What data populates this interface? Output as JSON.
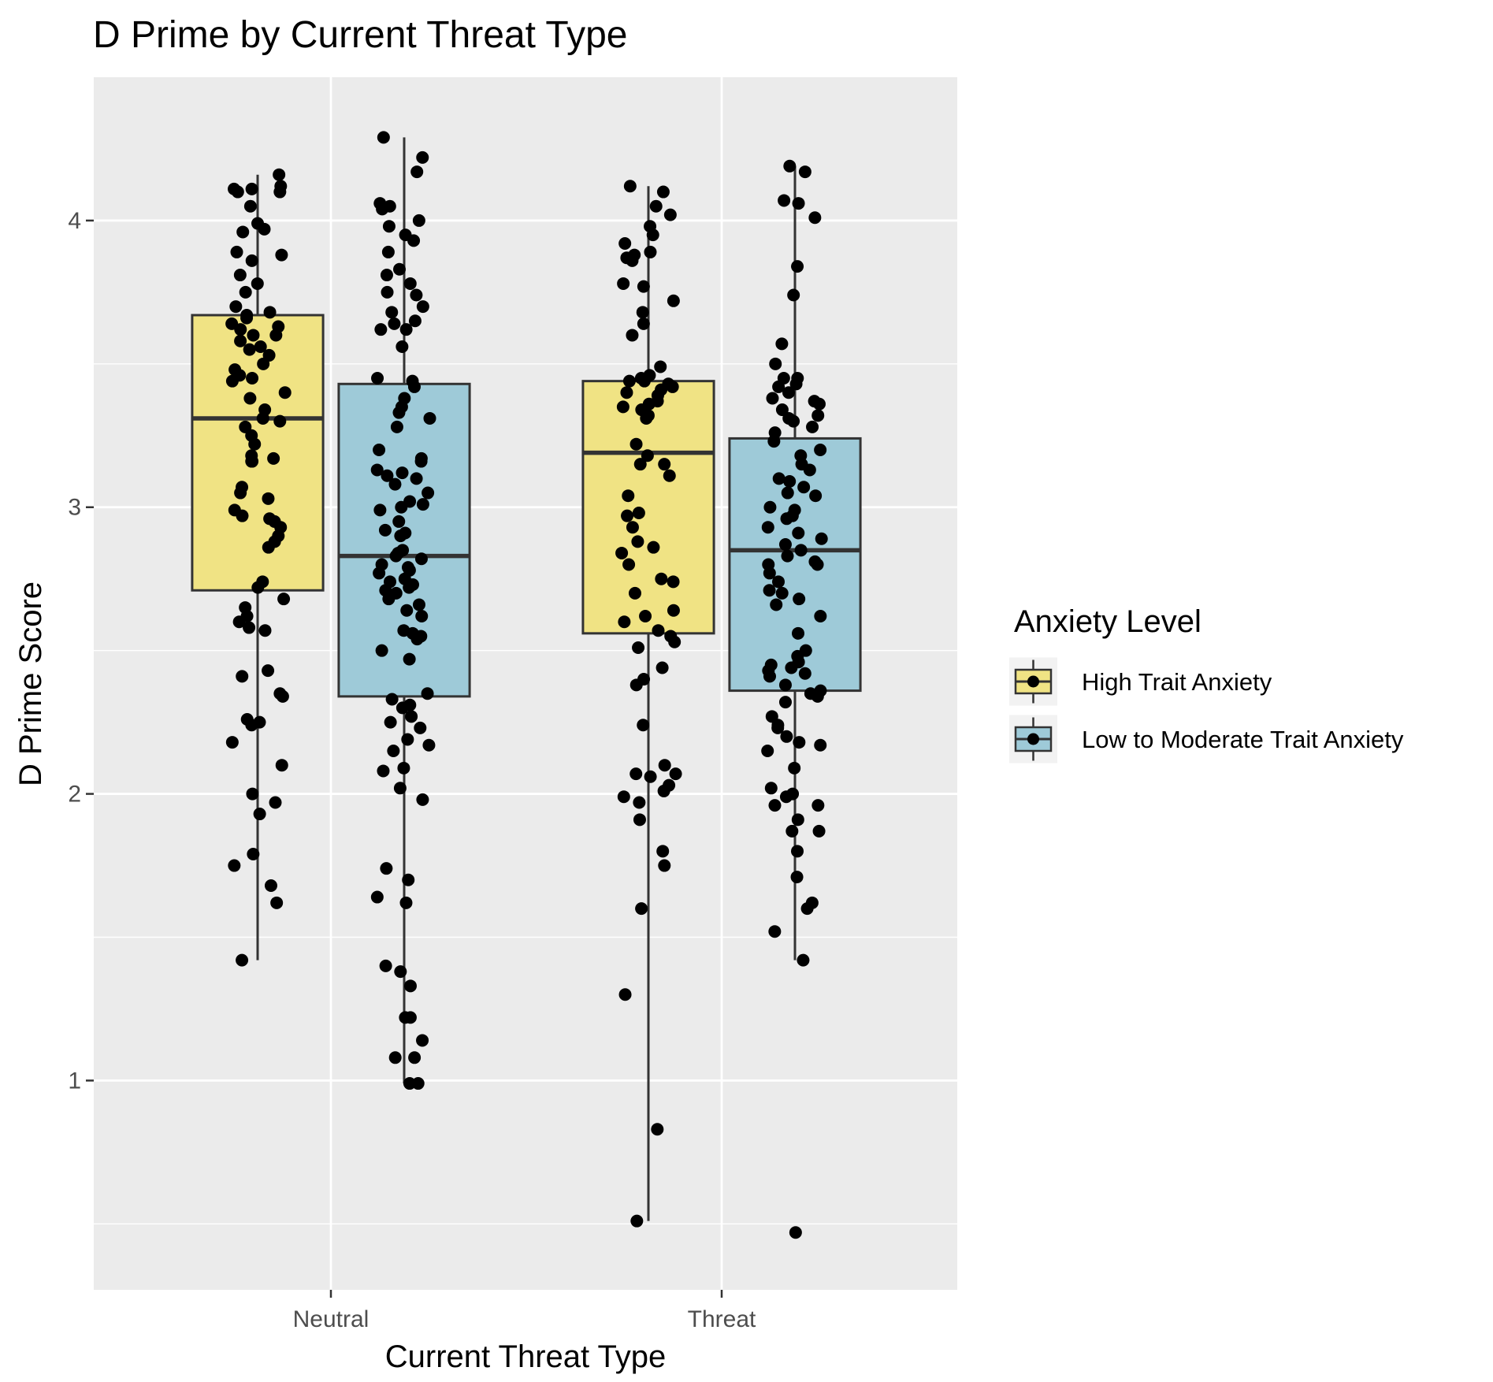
{
  "chart_data": {
    "type": "boxplot",
    "title": "D Prime by Current Threat Type",
    "xlabel": "Current Threat Type",
    "ylabel": "D Prime Score",
    "categories": [
      "Neutral",
      "Threat"
    ],
    "ylim": [
      0.27,
      4.5
    ],
    "yticks": [
      1,
      2,
      3,
      4
    ],
    "grid": true,
    "legend": {
      "title": "Anxiety Level",
      "placement": "right",
      "entries": [
        "High Trait Anxiety",
        "Low to Moderate Trait Anxiety"
      ]
    },
    "series": [
      {
        "name": "High Trait Anxiety",
        "color": "#f0e384",
        "boxes": [
          {
            "category": "Neutral",
            "min": 1.42,
            "q1": 2.71,
            "median": 3.31,
            "q3": 3.67,
            "max": 4.16,
            "points": [
              4.16,
              4.12,
              4.11,
              4.11,
              4.1,
              4.1,
              4.05,
              3.99,
              3.97,
              3.96,
              3.89,
              3.88,
              3.86,
              3.81,
              3.78,
              3.75,
              3.7,
              3.68,
              3.67,
              3.66,
              3.64,
              3.63,
              3.62,
              3.6,
              3.6,
              3.58,
              3.56,
              3.55,
              3.53,
              3.5,
              3.48,
              3.46,
              3.45,
              3.44,
              3.4,
              3.38,
              3.34,
              3.31,
              3.3,
              3.28,
              3.25,
              3.22,
              3.18,
              3.17,
              3.16,
              3.16,
              3.07,
              3.05,
              3.03,
              2.99,
              2.97,
              2.96,
              2.95,
              2.93,
              2.9,
              2.88,
              2.86,
              2.74,
              2.72,
              2.68,
              2.65,
              2.62,
              2.6,
              2.58,
              2.57,
              2.43,
              2.41,
              2.35,
              2.34,
              2.26,
              2.25,
              2.24,
              2.18,
              2.1,
              2.0,
              1.97,
              1.93,
              1.79,
              1.75,
              1.68,
              1.62,
              1.42
            ]
          },
          {
            "category": "Threat",
            "min": 0.51,
            "q1": 2.56,
            "median": 3.19,
            "q3": 3.44,
            "max": 4.12,
            "points": [
              4.12,
              4.1,
              4.05,
              4.02,
              3.98,
              3.95,
              3.92,
              3.89,
              3.88,
              3.87,
              3.86,
              3.78,
              3.77,
              3.72,
              3.68,
              3.64,
              3.6,
              3.49,
              3.46,
              3.45,
              3.44,
              3.44,
              3.43,
              3.42,
              3.41,
              3.4,
              3.39,
              3.37,
              3.36,
              3.35,
              3.34,
              3.32,
              3.31,
              3.22,
              3.18,
              3.15,
              3.15,
              3.11,
              3.04,
              2.98,
              2.97,
              2.93,
              2.88,
              2.86,
              2.84,
              2.8,
              2.75,
              2.74,
              2.7,
              2.64,
              2.62,
              2.6,
              2.57,
              2.55,
              2.53,
              2.51,
              2.44,
              2.4,
              2.38,
              2.24,
              2.1,
              2.07,
              2.07,
              2.06,
              2.03,
              2.01,
              1.99,
              1.97,
              1.91,
              1.8,
              1.75,
              1.6,
              1.3,
              0.83,
              0.51
            ]
          }
        ]
      },
      {
        "name": "Low to Moderate Trait Anxiety",
        "color": "#9ecad8",
        "boxes": [
          {
            "category": "Neutral",
            "min": 0.99,
            "q1": 2.34,
            "median": 2.83,
            "q3": 3.43,
            "max": 4.29,
            "points": [
              4.29,
              4.22,
              4.17,
              4.06,
              4.05,
              4.04,
              4.0,
              3.98,
              3.95,
              3.93,
              3.89,
              3.83,
              3.81,
              3.78,
              3.75,
              3.74,
              3.7,
              3.68,
              3.65,
              3.64,
              3.62,
              3.62,
              3.56,
              3.45,
              3.44,
              3.42,
              3.38,
              3.35,
              3.33,
              3.31,
              3.28,
              3.2,
              3.17,
              3.16,
              3.13,
              3.12,
              3.11,
              3.1,
              3.08,
              3.05,
              3.02,
              3.01,
              3.0,
              2.99,
              2.95,
              2.92,
              2.91,
              2.9,
              2.85,
              2.84,
              2.83,
              2.82,
              2.8,
              2.79,
              2.78,
              2.77,
              2.75,
              2.74,
              2.73,
              2.72,
              2.71,
              2.7,
              2.68,
              2.66,
              2.64,
              2.62,
              2.57,
              2.56,
              2.55,
              2.54,
              2.5,
              2.47,
              2.35,
              2.33,
              2.31,
              2.3,
              2.27,
              2.25,
              2.23,
              2.19,
              2.17,
              2.15,
              2.09,
              2.08,
              2.02,
              1.98,
              1.74,
              1.7,
              1.64,
              1.62,
              1.4,
              1.38,
              1.33,
              1.22,
              1.22,
              1.14,
              1.08,
              1.08,
              0.99,
              0.99
            ]
          },
          {
            "category": "Threat",
            "min": 1.42,
            "q1": 2.36,
            "median": 2.85,
            "q3": 3.24,
            "max": 4.19,
            "points": [
              4.19,
              4.17,
              4.07,
              4.06,
              4.01,
              3.84,
              3.74,
              3.57,
              3.5,
              3.45,
              3.45,
              3.43,
              3.42,
              3.4,
              3.38,
              3.37,
              3.36,
              3.34,
              3.32,
              3.31,
              3.3,
              3.28,
              3.26,
              3.23,
              3.2,
              3.18,
              3.15,
              3.13,
              3.1,
              3.09,
              3.07,
              3.05,
              3.04,
              3.0,
              2.99,
              2.97,
              2.96,
              2.93,
              2.91,
              2.89,
              2.87,
              2.85,
              2.83,
              2.81,
              2.8,
              2.8,
              2.77,
              2.74,
              2.71,
              2.7,
              2.68,
              2.66,
              2.62,
              2.56,
              2.5,
              2.48,
              2.46,
              2.45,
              2.44,
              2.43,
              2.42,
              2.41,
              2.38,
              2.36,
              2.35,
              2.34,
              2.32,
              2.27,
              2.24,
              2.23,
              2.2,
              2.18,
              2.17,
              2.15,
              2.09,
              2.02,
              2.0,
              1.99,
              1.96,
              1.96,
              1.91,
              1.87,
              1.87,
              1.8,
              1.71,
              1.62,
              1.6,
              1.52,
              1.42,
              0.47
            ]
          }
        ]
      }
    ]
  }
}
